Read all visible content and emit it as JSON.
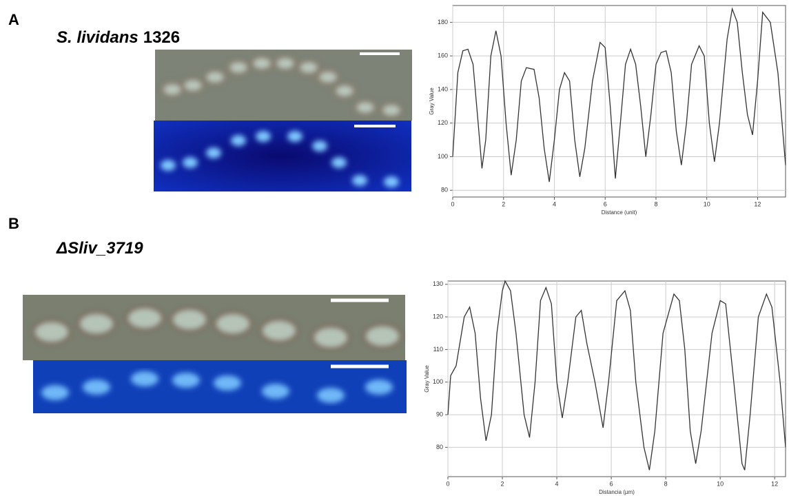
{
  "chart_data": [
    {
      "type": "line",
      "panel": "A",
      "title": [
        "S. lividans",
        "1326"
      ],
      "x_label": "Distance (unit)",
      "y_label": "Gray Value",
      "x": [
        0,
        0.2,
        0.4,
        0.6,
        0.8,
        1.0,
        1.15,
        1.3,
        1.5,
        1.7,
        1.9,
        2.1,
        2.3,
        2.5,
        2.7,
        2.9,
        3.2,
        3.4,
        3.6,
        3.8,
        4.0,
        4.2,
        4.4,
        4.6,
        4.8,
        5.0,
        5.2,
        5.5,
        5.8,
        6.0,
        6.2,
        6.4,
        6.6,
        6.8,
        7.0,
        7.2,
        7.4,
        7.6,
        7.8,
        8.0,
        8.2,
        8.4,
        8.6,
        8.8,
        9.0,
        9.2,
        9.4,
        9.7,
        9.9,
        10.1,
        10.3,
        10.5,
        10.8,
        11.0,
        11.2,
        11.4,
        11.6,
        11.8,
        12.0,
        12.2,
        12.5,
        12.8,
        13.1
      ],
      "series": [
        {
          "color": "#333333",
          "values": [
            100,
            150,
            163,
            164,
            155,
            120,
            93,
            110,
            160,
            175,
            160,
            120,
            89,
            110,
            145,
            153,
            152,
            135,
            105,
            85,
            110,
            140,
            150,
            145,
            110,
            88,
            105,
            145,
            168,
            165,
            130,
            87,
            120,
            155,
            164,
            155,
            130,
            100,
            125,
            155,
            162,
            163,
            150,
            115,
            95,
            120,
            155,
            166,
            160,
            120,
            97,
            120,
            170,
            188,
            180,
            150,
            125,
            113,
            145,
            186,
            180,
            150,
            95
          ]
        }
      ],
      "xlim": [
        0,
        13.1
      ],
      "ylim": [
        76,
        190
      ],
      "xticks": [
        0,
        2,
        4,
        6,
        8,
        10,
        12
      ],
      "yticks": [
        80,
        100,
        120,
        140,
        160,
        180
      ],
      "grid": true
    },
    {
      "type": "line",
      "panel": "B",
      "title": [
        "ΔSliv_3719"
      ],
      "x_label": "Distancia (µm)",
      "y_label": "Gray Value",
      "x": [
        0,
        0.1,
        0.3,
        0.6,
        0.8,
        1.0,
        1.2,
        1.4,
        1.6,
        1.8,
        2.0,
        2.1,
        2.3,
        2.5,
        2.8,
        3.0,
        3.2,
        3.4,
        3.6,
        3.8,
        4.0,
        4.2,
        4.4,
        4.7,
        4.9,
        5.1,
        5.4,
        5.7,
        5.9,
        6.2,
        6.5,
        6.7,
        6.9,
        7.2,
        7.4,
        7.6,
        7.9,
        8.3,
        8.5,
        8.7,
        8.9,
        9.1,
        9.3,
        9.7,
        10.0,
        10.2,
        10.5,
        10.8,
        10.9,
        11.1,
        11.4,
        11.7,
        11.9,
        12.2,
        12.4
      ],
      "series": [
        {
          "color": "#333333",
          "values": [
            90,
            102,
            105,
            120,
            123,
            115,
            95,
            82,
            90,
            115,
            128,
            131,
            128,
            115,
            90,
            83,
            100,
            125,
            129,
            124,
            100,
            89,
            100,
            120,
            122,
            112,
            100,
            86,
            100,
            125,
            128,
            122,
            100,
            80,
            73,
            85,
            115,
            127,
            125,
            110,
            85,
            75,
            85,
            115,
            125,
            124,
            100,
            75,
            73,
            90,
            120,
            127,
            123,
            100,
            80
          ]
        }
      ],
      "xlim": [
        0,
        12.4
      ],
      "ylim": [
        71,
        131
      ],
      "xticks": [
        0,
        2,
        4,
        6,
        8,
        10,
        12
      ],
      "yticks": [
        80,
        90,
        100,
        110,
        120,
        130
      ],
      "grid": true
    }
  ]
}
